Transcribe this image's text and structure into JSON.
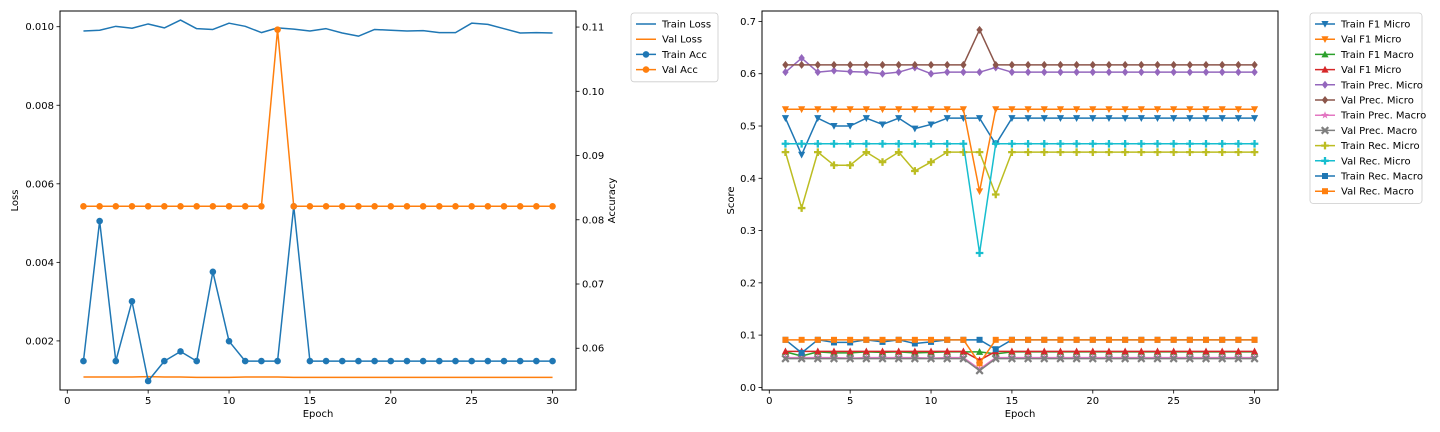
{
  "chart_data": [
    {
      "type": "line",
      "xlabel": "Epoch",
      "ylabel": "Loss",
      "y2label": "Accuracy",
      "xlim": [
        -0.45,
        31.45
      ],
      "ylim": [
        0.00075,
        0.0104
      ],
      "y2lim": [
        0.0535,
        0.1125
      ],
      "xticks": [
        0,
        5,
        10,
        15,
        20,
        25,
        30
      ],
      "yticks": [
        0.002,
        0.004,
        0.006,
        0.008,
        0.01
      ],
      "y2ticks": [
        0.06,
        0.07,
        0.08,
        0.09,
        0.1,
        0.11
      ],
      "ytick_labels": [
        "0.002",
        "0.004",
        "0.006",
        "0.008",
        "0.010"
      ],
      "y2tick_labels": [
        "0.06",
        "0.07",
        "0.08",
        "0.09",
        "0.10",
        "0.11"
      ],
      "legend_position": "outside upper right",
      "grid": false,
      "x": [
        1,
        2,
        3,
        4,
        5,
        6,
        7,
        8,
        9,
        10,
        11,
        12,
        13,
        14,
        15,
        16,
        17,
        18,
        19,
        20,
        21,
        22,
        23,
        24,
        25,
        26,
        27,
        28,
        29,
        30
      ],
      "series": [
        {
          "name": "Train Loss",
          "axis": "left",
          "color": "#1f77b4",
          "marker": "none",
          "values": [
            0.00989,
            0.00991,
            0.01001,
            0.00996,
            0.01007,
            0.00997,
            0.01017,
            0.00995,
            0.00993,
            0.01009,
            0.01001,
            0.00985,
            0.00997,
            0.00994,
            0.00989,
            0.00995,
            0.00984,
            0.00976,
            0.00993,
            0.00991,
            0.00989,
            0.0099,
            0.00985,
            0.00985,
            0.01009,
            0.01006,
            0.00995,
            0.00984,
            0.00985,
            0.00984
          ]
        },
        {
          "name": "Val Loss",
          "axis": "left",
          "color": "#ff7f0e",
          "marker": "none",
          "values": [
            0.00108,
            0.00108,
            0.00108,
            0.00108,
            0.00109,
            0.00108,
            0.00108,
            0.00107,
            0.00107,
            0.00107,
            0.00108,
            0.00108,
            0.00108,
            0.00107,
            0.00107,
            0.00107,
            0.00107,
            0.00107,
            0.00107,
            0.00107,
            0.00107,
            0.00107,
            0.00107,
            0.00107,
            0.00107,
            0.00107,
            0.00107,
            0.00107,
            0.00107,
            0.00107
          ]
        },
        {
          "name": "Train Acc",
          "axis": "right",
          "color": "#1f77b4",
          "marker": "circle",
          "values": [
            0.058,
            0.0798,
            0.058,
            0.0673,
            0.0549,
            0.058,
            0.0595,
            0.058,
            0.0719,
            0.0611,
            0.058,
            0.058,
            0.058,
            0.0821,
            0.058,
            0.058,
            0.058,
            0.058,
            0.058,
            0.058,
            0.058,
            0.058,
            0.058,
            0.058,
            0.058,
            0.058,
            0.058,
            0.058,
            0.058,
            0.058
          ]
        },
        {
          "name": "Val Acc",
          "axis": "right",
          "color": "#ff7f0e",
          "marker": "circle",
          "values": [
            0.0821,
            0.0821,
            0.0821,
            0.0821,
            0.0821,
            0.0821,
            0.0821,
            0.0821,
            0.0821,
            0.0821,
            0.0821,
            0.0821,
            0.1096,
            0.0821,
            0.0821,
            0.0821,
            0.0821,
            0.0821,
            0.0821,
            0.0821,
            0.0821,
            0.0821,
            0.0821,
            0.0821,
            0.0821,
            0.0821,
            0.0821,
            0.0821,
            0.0821,
            0.0821
          ]
        }
      ]
    },
    {
      "type": "line",
      "xlabel": "Epoch",
      "ylabel": "Score",
      "xlim": [
        -0.45,
        31.45
      ],
      "ylim": [
        -0.005,
        0.72
      ],
      "xticks": [
        0,
        5,
        10,
        15,
        20,
        25,
        30
      ],
      "yticks": [
        0.0,
        0.1,
        0.2,
        0.3,
        0.4,
        0.5,
        0.6,
        0.7
      ],
      "ytick_labels": [
        "0.0",
        "0.1",
        "0.2",
        "0.3",
        "0.4",
        "0.5",
        "0.6",
        "0.7"
      ],
      "legend_position": "outside upper right",
      "grid": false,
      "x": [
        1,
        2,
        3,
        4,
        5,
        6,
        7,
        8,
        9,
        10,
        11,
        12,
        13,
        14,
        15,
        16,
        17,
        18,
        19,
        20,
        21,
        22,
        23,
        24,
        25,
        26,
        27,
        28,
        29,
        30
      ],
      "series": [
        {
          "name": "Train F1 Micro",
          "color": "#1f77b4",
          "marker": "triangle-down",
          "values": [
            0.515,
            0.445,
            0.515,
            0.5,
            0.5,
            0.515,
            0.503,
            0.515,
            0.495,
            0.503,
            0.515,
            0.515,
            0.515,
            0.465,
            0.515,
            0.515,
            0.515,
            0.515,
            0.515,
            0.515,
            0.515,
            0.515,
            0.515,
            0.515,
            0.515,
            0.515,
            0.515,
            0.515,
            0.515,
            0.515
          ]
        },
        {
          "name": "Val F1 Micro",
          "color": "#ff7f0e",
          "marker": "triangle-down",
          "values": [
            0.532,
            0.532,
            0.532,
            0.532,
            0.532,
            0.532,
            0.532,
            0.532,
            0.532,
            0.532,
            0.532,
            0.532,
            0.375,
            0.532,
            0.532,
            0.532,
            0.532,
            0.532,
            0.532,
            0.532,
            0.532,
            0.532,
            0.532,
            0.532,
            0.532,
            0.532,
            0.532,
            0.532,
            0.532,
            0.532
          ]
        },
        {
          "name": "Train F1 Macro",
          "color": "#2ca02c",
          "marker": "triangle-up",
          "values": [
            0.068,
            0.06,
            0.068,
            0.066,
            0.066,
            0.068,
            0.067,
            0.068,
            0.066,
            0.067,
            0.068,
            0.068,
            0.068,
            0.064,
            0.068,
            0.068,
            0.068,
            0.068,
            0.068,
            0.068,
            0.068,
            0.068,
            0.068,
            0.068,
            0.068,
            0.068,
            0.068,
            0.068,
            0.068,
            0.068
          ]
        },
        {
          "name": "Val F1 Micro",
          "color": "#d62728",
          "marker": "triangle-up",
          "values": [
            0.069,
            0.069,
            0.069,
            0.069,
            0.069,
            0.069,
            0.069,
            0.069,
            0.069,
            0.069,
            0.069,
            0.069,
            0.052,
            0.069,
            0.069,
            0.069,
            0.069,
            0.069,
            0.069,
            0.069,
            0.069,
            0.069,
            0.069,
            0.069,
            0.069,
            0.069,
            0.069,
            0.069,
            0.069,
            0.069
          ]
        },
        {
          "name": "Train Prec. Micro",
          "color": "#9467bd",
          "marker": "diamond",
          "values": [
            0.603,
            0.63,
            0.603,
            0.606,
            0.604,
            0.603,
            0.6,
            0.603,
            0.612,
            0.6,
            0.603,
            0.603,
            0.603,
            0.612,
            0.603,
            0.603,
            0.603,
            0.603,
            0.603,
            0.603,
            0.603,
            0.603,
            0.603,
            0.603,
            0.603,
            0.603,
            0.603,
            0.603,
            0.603,
            0.603
          ]
        },
        {
          "name": "Val Prec. Micro",
          "color": "#8c564b",
          "marker": "diamond",
          "values": [
            0.617,
            0.617,
            0.617,
            0.617,
            0.617,
            0.617,
            0.617,
            0.617,
            0.617,
            0.617,
            0.617,
            0.617,
            0.684,
            0.617,
            0.617,
            0.617,
            0.617,
            0.617,
            0.617,
            0.617,
            0.617,
            0.617,
            0.617,
            0.617,
            0.617,
            0.617,
            0.617,
            0.617,
            0.617,
            0.617
          ]
        },
        {
          "name": "Train Prec. Macro",
          "color": "#e377c2",
          "marker": "star",
          "values": [
            0.057,
            0.057,
            0.057,
            0.057,
            0.056,
            0.057,
            0.057,
            0.057,
            0.057,
            0.056,
            0.057,
            0.057,
            0.035,
            0.057,
            0.057,
            0.057,
            0.057,
            0.057,
            0.057,
            0.057,
            0.057,
            0.057,
            0.057,
            0.057,
            0.057,
            0.057,
            0.057,
            0.057,
            0.057,
            0.057
          ]
        },
        {
          "name": "Val Prec. Macro",
          "color": "#7f7f7f",
          "marker": "x",
          "values": [
            0.055,
            0.055,
            0.055,
            0.055,
            0.055,
            0.055,
            0.055,
            0.055,
            0.055,
            0.055,
            0.055,
            0.055,
            0.032,
            0.055,
            0.055,
            0.055,
            0.055,
            0.055,
            0.055,
            0.055,
            0.055,
            0.055,
            0.055,
            0.055,
            0.055,
            0.055,
            0.055,
            0.055,
            0.055,
            0.055
          ]
        },
        {
          "name": "Train Rec. Micro",
          "color": "#bcbd22",
          "marker": "plus",
          "values": [
            0.45,
            0.343,
            0.45,
            0.425,
            0.425,
            0.45,
            0.431,
            0.45,
            0.414,
            0.431,
            0.45,
            0.45,
            0.45,
            0.369,
            0.45,
            0.45,
            0.45,
            0.45,
            0.45,
            0.45,
            0.45,
            0.45,
            0.45,
            0.45,
            0.45,
            0.45,
            0.45,
            0.45,
            0.45,
            0.45
          ]
        },
        {
          "name": "Val Rec. Micro",
          "color": "#17becf",
          "marker": "plus",
          "values": [
            0.466,
            0.466,
            0.466,
            0.466,
            0.466,
            0.466,
            0.466,
            0.466,
            0.466,
            0.466,
            0.466,
            0.466,
            0.257,
            0.466,
            0.466,
            0.466,
            0.466,
            0.466,
            0.466,
            0.466,
            0.466,
            0.466,
            0.466,
            0.466,
            0.466,
            0.466,
            0.466,
            0.466,
            0.466,
            0.466
          ]
        },
        {
          "name": "Train Rec. Macro",
          "color": "#1f77b4",
          "marker": "square",
          "values": [
            0.091,
            0.066,
            0.091,
            0.086,
            0.086,
            0.091,
            0.087,
            0.091,
            0.084,
            0.087,
            0.091,
            0.091,
            0.091,
            0.073,
            0.091,
            0.091,
            0.091,
            0.091,
            0.091,
            0.091,
            0.091,
            0.091,
            0.091,
            0.091,
            0.091,
            0.091,
            0.091,
            0.091,
            0.091,
            0.091
          ]
        },
        {
          "name": "Val Rec. Macro",
          "color": "#ff7f0e",
          "marker": "square",
          "values": [
            0.091,
            0.091,
            0.091,
            0.091,
            0.091,
            0.091,
            0.091,
            0.091,
            0.091,
            0.091,
            0.091,
            0.091,
            0.046,
            0.091,
            0.091,
            0.091,
            0.091,
            0.091,
            0.091,
            0.091,
            0.091,
            0.091,
            0.091,
            0.091,
            0.091,
            0.091,
            0.091,
            0.091,
            0.091,
            0.091
          ]
        }
      ]
    }
  ]
}
